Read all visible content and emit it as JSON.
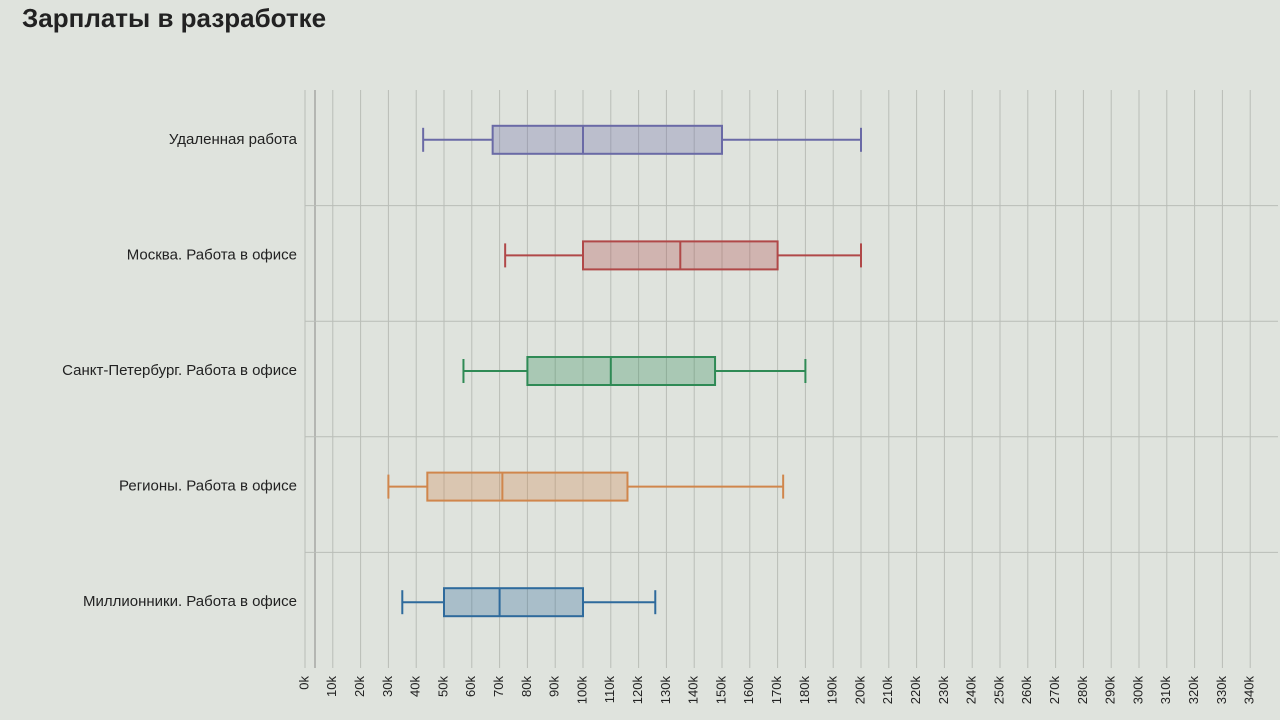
{
  "chart_data": {
    "type": "boxplot",
    "title": "Зарплаты в разработке",
    "categories": [
      "Удаленная работа",
      "Москва. Работа в офисе",
      "Санкт-Петербург. Работа в офисе",
      "Регионы. Работа в офисе",
      "Миллионники. Работа в офисе"
    ],
    "series": [
      {
        "name": "Удаленная работа",
        "color": "#6a6aa6",
        "values": [
          42500,
          67500,
          100000,
          150000,
          200000
        ]
      },
      {
        "name": "Москва. Работа в офисе",
        "color": "#b04848",
        "values": [
          72000,
          100000,
          135000,
          170000,
          200000
        ]
      },
      {
        "name": "Санкт-Петербург. Работа в офисе",
        "color": "#2f8a55",
        "values": [
          57000,
          80000,
          110000,
          147500,
          180000
        ]
      },
      {
        "name": "Регионы. Работа в офисе",
        "color": "#d0864c",
        "values": [
          30000,
          44000,
          71000,
          116000,
          172000
        ]
      },
      {
        "name": "Миллионники. Работа в офисе",
        "color": "#2e6a9c",
        "values": [
          35000,
          50000,
          70000,
          100000,
          126000
        ]
      }
    ],
    "xlim": [
      0,
      350000
    ],
    "xticks": [
      {
        "value": 0,
        "label": "0k"
      },
      {
        "value": 10000,
        "label": "10k"
      },
      {
        "value": 20000,
        "label": "20k"
      },
      {
        "value": 30000,
        "label": "30k"
      },
      {
        "value": 40000,
        "label": "40k"
      },
      {
        "value": 50000,
        "label": "50k"
      },
      {
        "value": 60000,
        "label": "60k"
      },
      {
        "value": 70000,
        "label": "70k"
      },
      {
        "value": 80000,
        "label": "80k"
      },
      {
        "value": 90000,
        "label": "90k"
      },
      {
        "value": 100000,
        "label": "100k"
      },
      {
        "value": 110000,
        "label": "110k"
      },
      {
        "value": 120000,
        "label": "120k"
      },
      {
        "value": 130000,
        "label": "130k"
      },
      {
        "value": 140000,
        "label": "140k"
      },
      {
        "value": 150000,
        "label": "150k"
      },
      {
        "value": 160000,
        "label": "160k"
      },
      {
        "value": 170000,
        "label": "170k"
      },
      {
        "value": 180000,
        "label": "180k"
      },
      {
        "value": 190000,
        "label": "190k"
      },
      {
        "value": 200000,
        "label": "200k"
      },
      {
        "value": 210000,
        "label": "210k"
      },
      {
        "value": 220000,
        "label": "220k"
      },
      {
        "value": 230000,
        "label": "230k"
      },
      {
        "value": 240000,
        "label": "240k"
      },
      {
        "value": 250000,
        "label": "250k"
      },
      {
        "value": 260000,
        "label": "260k"
      },
      {
        "value": 270000,
        "label": "270k"
      },
      {
        "value": 280000,
        "label": "280k"
      },
      {
        "value": 290000,
        "label": "290k"
      },
      {
        "value": 300000,
        "label": "300k"
      },
      {
        "value": 310000,
        "label": "310k"
      },
      {
        "value": 320000,
        "label": "320k"
      },
      {
        "value": 330000,
        "label": "330k"
      },
      {
        "value": 340000,
        "label": "340k"
      }
    ],
    "grid": true
  }
}
